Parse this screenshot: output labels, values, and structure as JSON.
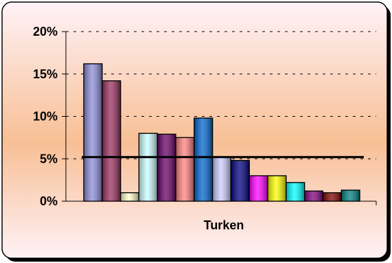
{
  "chart_data": {
    "type": "bar",
    "xlabel": "Turken",
    "ylim": [
      0,
      20
    ],
    "yticks": [
      "0%",
      "5%",
      "10%",
      "15%",
      "20%"
    ],
    "ytick_values": [
      0,
      5,
      10,
      15,
      20
    ],
    "grid": "horizontal dashed",
    "values": [
      16.2,
      14.2,
      1.0,
      8.0,
      7.9,
      7.5,
      9.8,
      5.2,
      4.8,
      3.0,
      3.0,
      2.2,
      1.2,
      1.0,
      1.3
    ],
    "colors": [
      "#8c8cd8",
      "#9a2f5e",
      "#ffffcc",
      "#ccffff",
      "#660066",
      "#ff8080",
      "#0066cc",
      "#ccccff",
      "#000080",
      "#ff00ff",
      "#ffff00",
      "#00ffff",
      "#800080",
      "#800000",
      "#008080"
    ],
    "reference_line": 5.2,
    "background": {
      "gradient": [
        "#fff0f5",
        "#f6b98a"
      ]
    }
  }
}
